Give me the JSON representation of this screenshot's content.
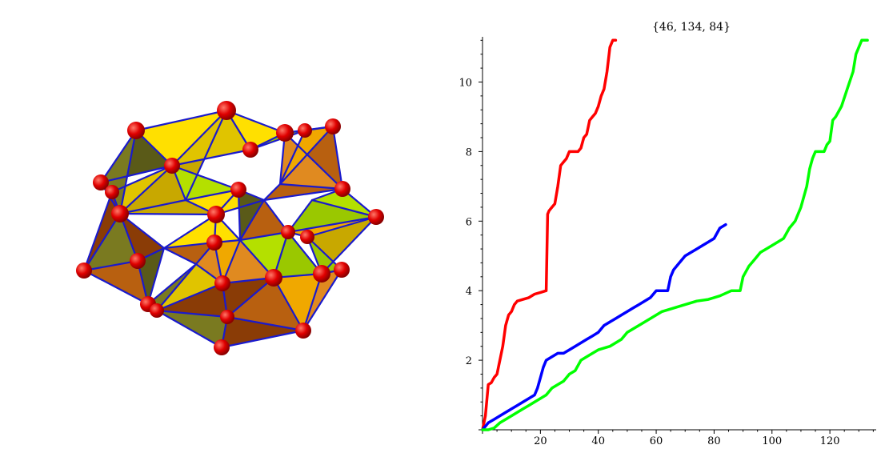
{
  "colors": {
    "sphere": "#e00000",
    "edge": "#1a1acc",
    "face_palette": [
      "#c8a800",
      "#e0c400",
      "#ffe000",
      "#8a3c06",
      "#b86010",
      "#e08a20",
      "#9ac800",
      "#b4e000",
      "#5a5a18",
      "#7a7a20",
      "#f0a800"
    ]
  },
  "chart_data": {
    "type": "line",
    "title": "{46, 134, 84}",
    "xlabel": "",
    "ylabel": "",
    "xlim": [
      0,
      136
    ],
    "ylim": [
      0,
      11.3
    ],
    "xticks": [
      20,
      40,
      60,
      80,
      100,
      120
    ],
    "yticks": [
      2,
      4,
      6,
      8,
      10
    ],
    "grid": false,
    "series": [
      {
        "color": "#ff0000",
        "values": [
          [
            0,
            0
          ],
          [
            1,
            0.4
          ],
          [
            2,
            1.3
          ],
          [
            3,
            1.35
          ],
          [
            4,
            1.5
          ],
          [
            5,
            1.6
          ],
          [
            6,
            2.0
          ],
          [
            7,
            2.4
          ],
          [
            8,
            3.0
          ],
          [
            9,
            3.3
          ],
          [
            10,
            3.4
          ],
          [
            11,
            3.6
          ],
          [
            12,
            3.7
          ],
          [
            14,
            3.75
          ],
          [
            16,
            3.8
          ],
          [
            18,
            3.9
          ],
          [
            20,
            3.95
          ],
          [
            22,
            4.0
          ],
          [
            22.5,
            6.2
          ],
          [
            23,
            6.3
          ],
          [
            24,
            6.4
          ],
          [
            25,
            6.5
          ],
          [
            26,
            7.0
          ],
          [
            27,
            7.6
          ],
          [
            28,
            7.7
          ],
          [
            29,
            7.8
          ],
          [
            30,
            8.0
          ],
          [
            32,
            8.0
          ],
          [
            33,
            8.0
          ],
          [
            34,
            8.1
          ],
          [
            35,
            8.4
          ],
          [
            36,
            8.5
          ],
          [
            37,
            8.9
          ],
          [
            38,
            9.0
          ],
          [
            39,
            9.1
          ],
          [
            40,
            9.3
          ],
          [
            41,
            9.6
          ],
          [
            42,
            9.8
          ],
          [
            43,
            10.3
          ],
          [
            44,
            11.0
          ],
          [
            45,
            11.2
          ],
          [
            46,
            11.2
          ]
        ]
      },
      {
        "color": "#0000ff",
        "values": [
          [
            0,
            0
          ],
          [
            2,
            0.2
          ],
          [
            4,
            0.3
          ],
          [
            6,
            0.4
          ],
          [
            8,
            0.5
          ],
          [
            10,
            0.6
          ],
          [
            12,
            0.7
          ],
          [
            14,
            0.8
          ],
          [
            16,
            0.9
          ],
          [
            18,
            1.0
          ],
          [
            19,
            1.2
          ],
          [
            20,
            1.5
          ],
          [
            21,
            1.8
          ],
          [
            22,
            2.0
          ],
          [
            24,
            2.1
          ],
          [
            26,
            2.2
          ],
          [
            28,
            2.2
          ],
          [
            30,
            2.3
          ],
          [
            32,
            2.4
          ],
          [
            34,
            2.5
          ],
          [
            36,
            2.6
          ],
          [
            38,
            2.7
          ],
          [
            40,
            2.8
          ],
          [
            42,
            3.0
          ],
          [
            44,
            3.1
          ],
          [
            46,
            3.2
          ],
          [
            48,
            3.3
          ],
          [
            50,
            3.4
          ],
          [
            52,
            3.5
          ],
          [
            54,
            3.6
          ],
          [
            56,
            3.7
          ],
          [
            58,
            3.8
          ],
          [
            60,
            4.0
          ],
          [
            62,
            4.0
          ],
          [
            64,
            4.0
          ],
          [
            65,
            4.4
          ],
          [
            66,
            4.6
          ],
          [
            68,
            4.8
          ],
          [
            70,
            5.0
          ],
          [
            72,
            5.1
          ],
          [
            74,
            5.2
          ],
          [
            76,
            5.3
          ],
          [
            78,
            5.4
          ],
          [
            80,
            5.5
          ],
          [
            82,
            5.8
          ],
          [
            84,
            5.9
          ]
        ]
      },
      {
        "color": "#00ff00",
        "values": [
          [
            0,
            0
          ],
          [
            2,
            0
          ],
          [
            4,
            0.05
          ],
          [
            6,
            0.2
          ],
          [
            8,
            0.3
          ],
          [
            10,
            0.4
          ],
          [
            12,
            0.5
          ],
          [
            14,
            0.6
          ],
          [
            16,
            0.7
          ],
          [
            18,
            0.8
          ],
          [
            20,
            0.9
          ],
          [
            22,
            1.0
          ],
          [
            24,
            1.2
          ],
          [
            26,
            1.3
          ],
          [
            28,
            1.4
          ],
          [
            30,
            1.6
          ],
          [
            32,
            1.7
          ],
          [
            34,
            2.0
          ],
          [
            36,
            2.1
          ],
          [
            38,
            2.2
          ],
          [
            40,
            2.3
          ],
          [
            44,
            2.4
          ],
          [
            48,
            2.6
          ],
          [
            50,
            2.8
          ],
          [
            54,
            3.0
          ],
          [
            58,
            3.2
          ],
          [
            62,
            3.4
          ],
          [
            66,
            3.5
          ],
          [
            70,
            3.6
          ],
          [
            74,
            3.7
          ],
          [
            78,
            3.75
          ],
          [
            82,
            3.85
          ],
          [
            86,
            4.0
          ],
          [
            89,
            4.0
          ],
          [
            90,
            4.4
          ],
          [
            92,
            4.7
          ],
          [
            94,
            4.9
          ],
          [
            96,
            5.1
          ],
          [
            98,
            5.2
          ],
          [
            100,
            5.3
          ],
          [
            102,
            5.4
          ],
          [
            104,
            5.5
          ],
          [
            106,
            5.8
          ],
          [
            108,
            6.0
          ],
          [
            110,
            6.4
          ],
          [
            112,
            7.0
          ],
          [
            113,
            7.5
          ],
          [
            114,
            7.8
          ],
          [
            115,
            8.0
          ],
          [
            116,
            8.0
          ],
          [
            118,
            8.0
          ],
          [
            119,
            8.2
          ],
          [
            120,
            8.3
          ],
          [
            121,
            8.9
          ],
          [
            122,
            9.0
          ],
          [
            124,
            9.3
          ],
          [
            126,
            9.8
          ],
          [
            128,
            10.3
          ],
          [
            129,
            10.8
          ],
          [
            131,
            11.2
          ],
          [
            133,
            11.2
          ]
        ]
      }
    ]
  }
}
